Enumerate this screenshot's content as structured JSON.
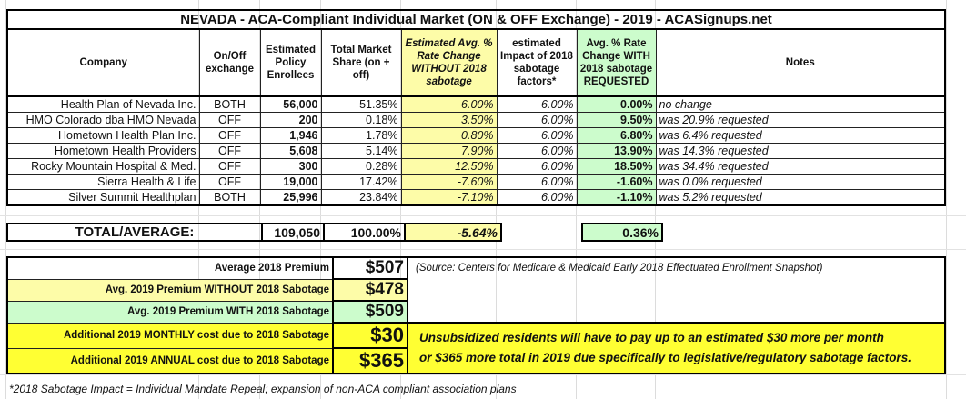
{
  "title": "NEVADA - ACA-Compliant Individual Market (ON & OFF Exchange) - 2019 - ACASignups.net",
  "headers": [
    "Company",
    "On/Off exchange",
    "Estimated Policy Enrollees",
    "Total Market Share (on + off)",
    "Estimated Avg. % Rate Change WITHOUT 2018 sabotage",
    "estimated Impact of 2018 sabotage factors*",
    "Avg. % Rate Change WITH 2018 sabotage REQUESTED",
    "Notes"
  ],
  "rows": [
    {
      "company": "Health Plan of Nevada Inc.",
      "exchange": "BOTH",
      "enrollees": "56,000",
      "share": "51.35%",
      "without": "-6.00%",
      "impact": "6.00%",
      "with": "0.00%",
      "notes": "no change"
    },
    {
      "company": "HMO Colorado dba HMO Nevada",
      "exchange": "OFF",
      "enrollees": "200",
      "share": "0.18%",
      "without": "3.50%",
      "impact": "6.00%",
      "with": "9.50%",
      "notes": "was 20.9% requested"
    },
    {
      "company": "Hometown Health Plan Inc.",
      "exchange": "OFF",
      "enrollees": "1,946",
      "share": "1.78%",
      "without": "0.80%",
      "impact": "6.00%",
      "with": "6.80%",
      "notes": "was 6.4% requested"
    },
    {
      "company": "Hometown Health Providers",
      "exchange": "OFF",
      "enrollees": "5,608",
      "share": "5.14%",
      "without": "7.90%",
      "impact": "6.00%",
      "with": "13.90%",
      "notes": "was 14.3% requested"
    },
    {
      "company": "Rocky Mountain Hospital & Med.",
      "exchange": "OFF",
      "enrollees": "300",
      "share": "0.28%",
      "without": "12.50%",
      "impact": "6.00%",
      "with": "18.50%",
      "notes": "was 34.4% requested"
    },
    {
      "company": "Sierra Health & Life",
      "exchange": "OFF",
      "enrollees": "19,000",
      "share": "17.42%",
      "without": "-7.60%",
      "impact": "6.00%",
      "with": "-1.60%",
      "notes": "was 0.0% requested"
    },
    {
      "company": "Silver Summit Healthplan",
      "exchange": "BOTH",
      "enrollees": "25,996",
      "share": "23.84%",
      "without": "-7.10%",
      "impact": "6.00%",
      "with": "-1.10%",
      "notes": "was 5.2% requested"
    }
  ],
  "total": {
    "label": "TOTAL/AVERAGE:",
    "enrollees": "109,050",
    "share": "100.00%",
    "without": "-5.64%",
    "with": "0.36%"
  },
  "summary": [
    {
      "label": "Average 2018 Premium",
      "value": "$507"
    },
    {
      "label": "Avg. 2019 Premium WITHOUT 2018 Sabotage",
      "value": "$478"
    },
    {
      "label": "Avg. 2019 Premium WITH 2018 Sabotage",
      "value": "$509"
    },
    {
      "label": "Additional 2019 MONTHLY cost due to 2018 Sabotage",
      "value": "$30"
    },
    {
      "label": "Additional 2019 ANNUAL cost due to 2018 Sabotage",
      "value": "$365"
    }
  ],
  "source": "(Source: Centers for Medicare & Medicaid Early 2018 Effectuated Enrollment Snapshot)",
  "message_line1": "Unsubsidized residents will have to pay up to an estimated $30 more per month",
  "message_line2": "or $365 more total in 2019 due specifically to legislative/regulatory sabotage factors.",
  "footnote": "*2018 Sabotage Impact = Individual Mandate Repeal; expansion of non-ACA compliant association plans",
  "colors": {
    "without": "#fdfca8",
    "with": "#ccfccc",
    "highlight": "#ffff33"
  }
}
